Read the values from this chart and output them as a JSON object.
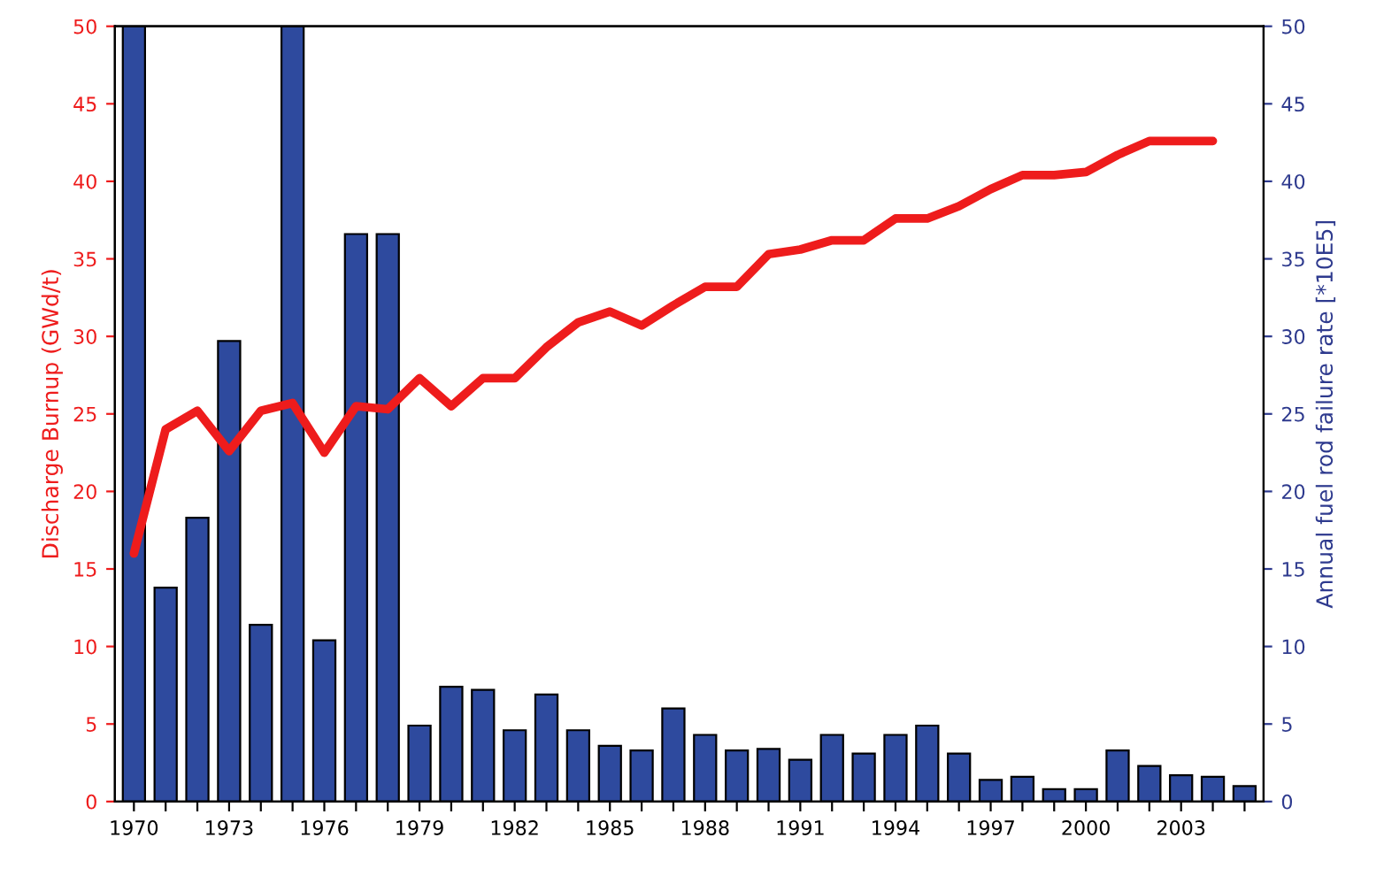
{
  "chart_data": {
    "type": "bar",
    "categories": [
      "1970",
      null,
      null,
      "1973",
      null,
      null,
      "1976",
      null,
      null,
      "1979",
      null,
      null,
      "1982",
      null,
      null,
      "1985",
      null,
      null,
      "1988",
      null,
      null,
      "1991",
      null,
      null,
      "1994",
      null,
      null,
      "1997",
      null,
      null,
      "2000",
      null,
      null,
      "2003",
      null,
      null
    ],
    "ylabel": "Discharge Burnup (GWd/t)",
    "y2label": "Annual fuel rod failure rate [*10E5]",
    "ylim": [
      0,
      50
    ],
    "yticks": [
      0,
      5,
      10,
      15,
      20,
      25,
      30,
      35,
      40,
      45,
      50
    ],
    "y2lim": [
      0,
      50
    ],
    "y2ticks": [
      0,
      5,
      10,
      15,
      20,
      25,
      30,
      35,
      40,
      45,
      50
    ],
    "grid": false,
    "legend": false,
    "series": [
      {
        "axis": "y2",
        "color": "#2e4a9e",
        "values": [
          50,
          13.8,
          18.3,
          29.7,
          11.4,
          50,
          10.4,
          36.6,
          36.6,
          4.9,
          7.4,
          7.2,
          4.6,
          6.9,
          4.6,
          3.6,
          3.3,
          6.0,
          4.3,
          3.3,
          3.4,
          2.7,
          4.3,
          3.1,
          4.3,
          4.9,
          3.1,
          1.4,
          1.6,
          0.8,
          0.8,
          3.3,
          2.3,
          1.7,
          1.6,
          1.0
        ]
      },
      {
        "type": "line",
        "axis": "y",
        "color": "#ee1c1c",
        "values": [
          16,
          24,
          25.2,
          22.6,
          25.2,
          25.7,
          22.5,
          25.5,
          25.3,
          27.3,
          25.5,
          27.3,
          27.3,
          29.3,
          30.9,
          31.6,
          30.7,
          32,
          33.2,
          33.2,
          35.3,
          35.6,
          36.2,
          36.2,
          37.6,
          37.6,
          38.4,
          39.5,
          40.4,
          40.4,
          40.6,
          41.7,
          42.6,
          42.6,
          42.6,
          null
        ]
      }
    ]
  }
}
